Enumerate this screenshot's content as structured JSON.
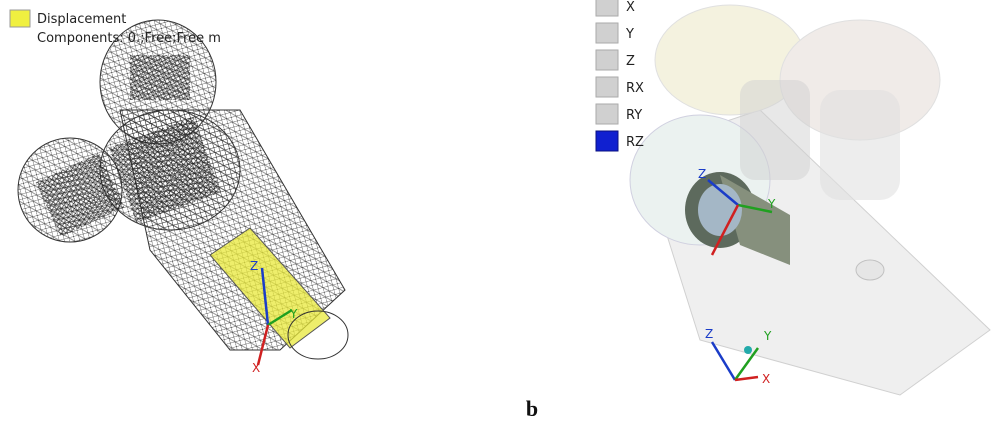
{
  "left_panel": {
    "legend": {
      "label": "Displacement",
      "components": "Components: 0.;Free;Free m"
    },
    "triad": {
      "z": "Z",
      "y": "Y",
      "x": "X"
    }
  },
  "right_panel": {
    "dof_list": [
      {
        "label": "X",
        "checked": false
      },
      {
        "label": "Y",
        "checked": false
      },
      {
        "label": "Z",
        "checked": false
      },
      {
        "label": "RX",
        "checked": false
      },
      {
        "label": "RY",
        "checked": false
      },
      {
        "label": "RZ",
        "checked": true
      }
    ],
    "part_triad": {
      "z": "Z",
      "y": "Y"
    },
    "view_triad": {
      "z": "Z",
      "y": "Y",
      "x": "X"
    }
  },
  "caption": "b"
}
